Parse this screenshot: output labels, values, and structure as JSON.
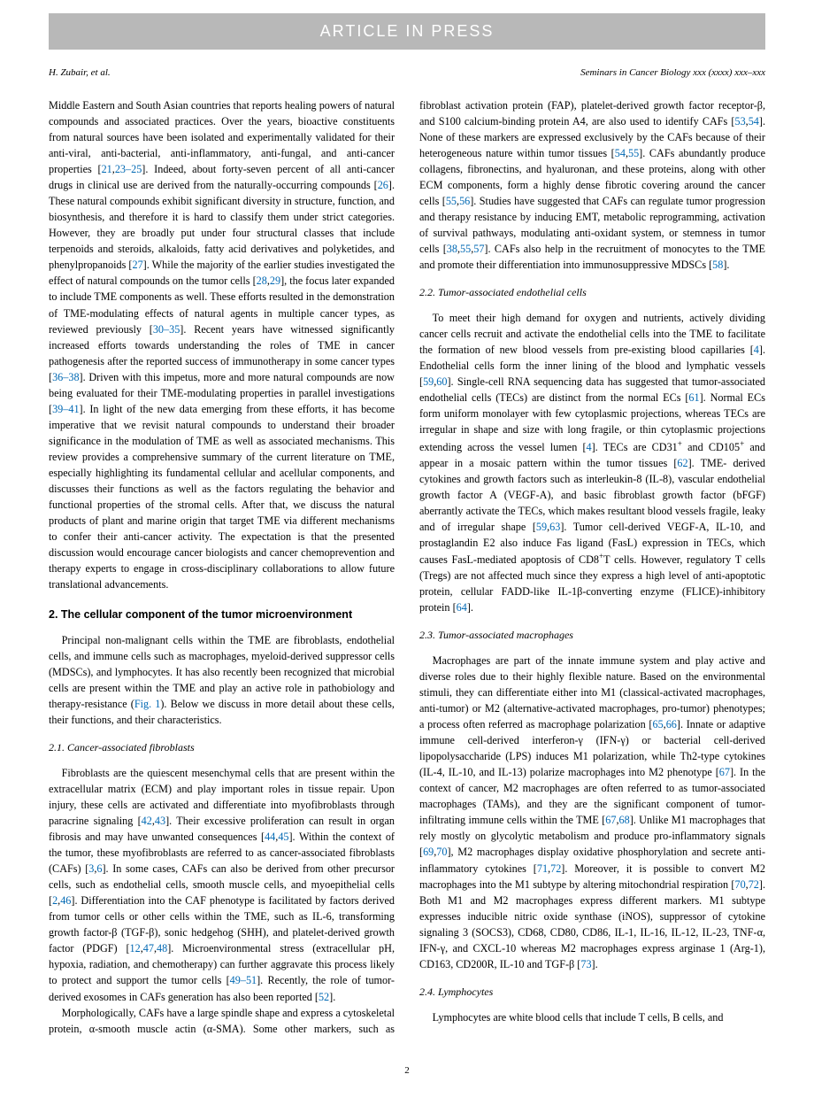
{
  "banner": "ARTICLE IN PRESS",
  "header": {
    "left": "H. Zubair, et al.",
    "right": "Seminars in Cancer Biology xxx (xxxx) xxx–xxx"
  },
  "refcolor": "#0068b3",
  "body": {
    "para1a": "Middle Eastern and South Asian countries that reports healing powers of natural compounds and associated practices. Over the years, bioactive constituents from natural sources have been isolated and experimentally validated for their anti-viral, anti-bacterial, anti-inflammatory, anti-fungal, and anti-cancer properties [",
    "ref1": "21",
    "ref1c": ",",
    "ref2": "23–25",
    "para1b": "]. Indeed, about forty-seven percent of all anti-cancer drugs in clinical use are derived from the naturally-occurring compounds [",
    "ref3": "26",
    "para1c": "]. These natural compounds exhibit significant diversity in structure, function, and biosynthesis, and therefore it is hard to classify them under strict categories. However, they are broadly put under four structural classes that include terpenoids and steroids, alkaloids, fatty acid derivatives and polyketides, and phenylpropanoids [",
    "ref4": "27",
    "para1d": "]. While the majority of the earlier studies investigated the effect of natural compounds on the tumor cells [",
    "ref5": "28",
    "ref5c": ",",
    "ref6": "29",
    "para1e": "], the focus later expanded to include TME components as well. These efforts resulted in the demonstration of TME-modulating effects of natural agents in multiple cancer types, as reviewed previously [",
    "ref7": "30–35",
    "para1f": "]. Recent years have witnessed significantly increased efforts towards understanding the roles of TME in cancer pathogenesis after the reported success of immunotherapy in some cancer types [",
    "ref8": "36–38",
    "para1g": "]. Driven with this impetus, more and more natural compounds are now being evaluated for their TME-modulating properties in parallel investigations [",
    "ref9": "39–41",
    "para1h": "]. In light of the new data emerging from these efforts, it has become imperative that we revisit natural compounds to understand their broader significance in the modulation of TME as well as associated mechanisms. This review provides a comprehensive summary of the current literature on TME, especially highlighting its fundamental cellular and acellular components, and discusses their functions as well as the factors regulating the behavior and functional properties of the stromal cells. After that, we discuss the natural products of plant and marine origin that target TME via different mechanisms to confer their anti-cancer activity. The expectation is that the presented discussion would encourage cancer biologists and cancer chemoprevention and therapy experts to engage in cross-disciplinary collaborations to allow future translational advancements.",
    "section2": "2. The cellular component of the tumor microenvironment",
    "para2a": "Principal non-malignant cells within the TME are fibroblasts, endothelial cells, and immune cells such as macrophages, myeloid-derived suppressor cells (MDSCs), and lymphocytes. It has also recently been recognized that microbial cells are present within the TME and play an active role in pathobiology and therapy-resistance (",
    "fig1": "Fig. 1",
    "para2b": "). Below we discuss in more detail about these cells, their functions, and their characteristics.",
    "sub21": "2.1. Cancer-associated fibroblasts",
    "para21a": "Fibroblasts are the quiescent mesenchymal cells that are present within the extracellular matrix (ECM) and play important roles in tissue repair. Upon injury, these cells are activated and differentiate into myofibroblasts through paracrine signaling [",
    "ref10": "42",
    "ref10c": ",",
    "ref11": "43",
    "para21b": "]. Their excessive proliferation can result in organ fibrosis and may have unwanted consequences [",
    "ref12": "44",
    "ref12c": ",",
    "ref13": "45",
    "para21c": "]. Within the context of the tumor, these myofibroblasts are referred to as cancer-associated fibroblasts (CAFs) [",
    "ref14": "3",
    "ref14c": ",",
    "ref15": "6",
    "para21d": "]. In some cases, CAFs can also be derived from other precursor cells, such as endothelial cells, smooth muscle cells, and myoepithelial cells [",
    "ref16": "2",
    "ref16c": ",",
    "ref17": "46",
    "para21e": "]. Differentiation into the CAF phenotype is facilitated by factors derived from tumor cells or other cells within the TME, such as IL-6, transforming growth factor-β (TGF-β), sonic hedgehog (SHH), and platelet-derived growth factor (PDGF) [",
    "ref18": "12",
    "ref18c": ",",
    "ref19": "47",
    "ref19c": ",",
    "ref20": "48",
    "para21f": "]. Microenvironmental stress (extracellular pH, hypoxia, radiation, and chemotherapy) can further aggravate this process likely to protect and support the tumor cells [",
    "ref21": "49–51",
    "para21g": "]. Recently, the role of tumor-derived exosomes in CAFs generation has also been reported [",
    "ref22": "52",
    "para21h": "].",
    "para21i": "Morphologically, CAFs have a large spindle shape and express a ",
    "para21j": "cytoskeletal protein, α-smooth muscle actin (α-SMA). Some other markers, such as fibroblast activation protein (FAP), platelet-derived growth factor receptor-β, and S100 calcium-binding protein A4, are also used to identify CAFs [",
    "ref23": "53",
    "ref23c": ",",
    "ref24": "54",
    "para21k": "]. None of these markers are expressed exclusively by the CAFs because of their heterogeneous nature within tumor tissues [",
    "ref25": "54",
    "ref25c": ",",
    "ref26": "55",
    "para21l": "]. CAFs abundantly produce collagens, fibronectins, and hyaluronan, and these proteins, along with other ECM components, form a highly dense fibrotic covering around the cancer cells [",
    "ref27": "55",
    "ref27c": ",",
    "ref28": "56",
    "para21m": "]. Studies have suggested that CAFs can regulate tumor progression and therapy resistance by inducing EMT, metabolic reprogramming, activation of survival pathways, modulating anti-oxidant system, or stemness in tumor cells [",
    "ref29": "38",
    "ref29c": ",",
    "ref30": "55",
    "ref30c": ",",
    "ref31": "57",
    "para21n": "]. CAFs also help in the recruitment of monocytes to the TME and promote their differentiation into immunosuppressive MDSCs [",
    "ref32": "58",
    "para21o": "].",
    "sub22": "2.2. Tumor-associated endothelial cells",
    "para22a": "To meet their high demand for oxygen and nutrients, actively dividing cancer cells recruit and activate the endothelial cells into the TME to facilitate the formation of new blood vessels from pre-existing blood capillaries [",
    "ref33": "4",
    "para22b": "]. Endothelial cells form the inner lining of the blood and lymphatic vessels [",
    "ref34": "59",
    "ref34c": ",",
    "ref35": "60",
    "para22c": "]. Single-cell RNA sequencing data has suggested that tumor-associated endothelial cells (TECs) are distinct from the normal ECs [",
    "ref36": "61",
    "para22d": "]. Normal ECs form uniform monolayer with few cytoplasmic projections, whereas TECs are irregular in shape and size with long fragile, or thin cytoplasmic projections extending across the vessel lumen [",
    "ref37": "4",
    "para22e1": "]. TECs are CD31",
    "para22e2": " and CD105",
    "para22e3": " and appear in a mosaic pattern within the tumor tissues [",
    "ref38": "62",
    "para22f": "]. TME- derived cytokines and growth factors such as interleukin-8 (IL-8), vascular endothelial growth factor A (VEGF-A), and basic fibroblast growth factor (bFGF) aberrantly activate the TECs, which makes resultant blood vessels fragile, leaky and of irregular shape [",
    "ref39": "59",
    "ref39c": ",",
    "ref40": "63",
    "para22g1": "]. Tumor cell-derived VEGF-A, IL-10, and prostaglandin E2 also induce Fas ligand (FasL) expression in TECs, which causes FasL-mediated apoptosis of CD8",
    "para22g2": "T cells. However, regulatory T cells (Tregs) are not affected much since they express a high level of anti-apoptotic protein, cellular FADD-like IL-1β-converting enzyme (FLICE)-inhibitory protein [",
    "ref41": "64",
    "para22h": "].",
    "sub23": "2.3. Tumor-associated macrophages",
    "para23a": "Macrophages are part of the innate immune system and play active and diverse roles due to their highly flexible nature. Based on the environmental stimuli, they can differentiate either into M1 (classical-activated macrophages, anti-tumor) or M2 (alternative-activated macrophages, pro-tumor) phenotypes; a process often referred as macrophage polarization [",
    "ref42": "65",
    "ref42c": ",",
    "ref43": "66",
    "para23b": "]. Innate or adaptive immune cell-derived interferon-γ (IFN-γ) or bacterial cell-derived lipopolysaccharide (LPS) induces M1 polarization, while Th2-type cytokines (IL-4, IL-10, and IL-13) polarize macrophages into M2 phenotype [",
    "ref44": "67",
    "para23c": "]. In the context of cancer, M2 macrophages are often referred to as tumor-associated macrophages (TAMs), and they are the significant component of tumor-infiltrating immune cells within the TME [",
    "ref45": "67",
    "ref45c": ",",
    "ref46": "68",
    "para23d": "]. Unlike M1 macrophages that rely mostly on glycolytic metabolism and produce pro-inflammatory signals [",
    "ref47": "69",
    "ref47c": ",",
    "ref48": "70",
    "para23e": "], M2 macrophages display oxidative phosphorylation and secrete anti-inflammatory cytokines [",
    "ref49": "71",
    "ref49c": ",",
    "ref50": "72",
    "para23f": "]. Moreover, it is possible to convert M2 macrophages into the M1 subtype by altering mitochondrial respiration [",
    "ref51": "70",
    "ref51c": ",",
    "ref52": "72",
    "para23g": "]. Both M1 and M2 macrophages express different markers. M1 subtype expresses inducible nitric oxide synthase (iNOS), suppressor of cytokine signaling 3 (SOCS3), CD68, CD80, CD86, IL-1, IL-16, IL-12, IL-23, TNF-α, IFN-γ, and CXCL-10 whereas M2 macrophages express arginase 1 (Arg-1), CD163, CD200R, IL-10 and TGF-β [",
    "ref53": "73",
    "para23h": "].",
    "sub24": "2.4. Lymphocytes",
    "para24a": "Lymphocytes are white blood cells that include T cells, B cells, and"
  },
  "pagenum": "2"
}
